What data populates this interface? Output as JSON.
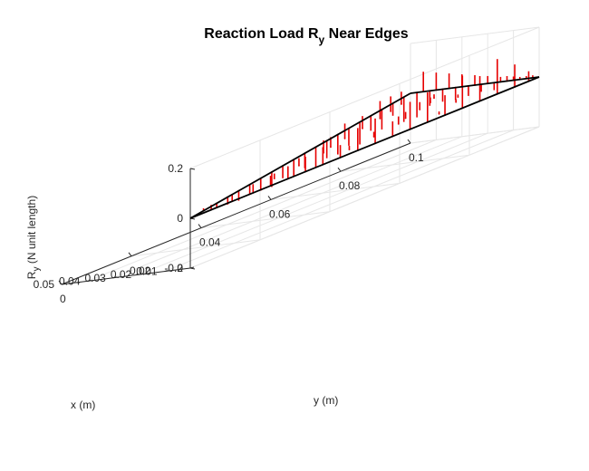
{
  "chart_data": {
    "type": "3d-stem",
    "title": "Reaction Load R",
    "title_sub": "y",
    "title_rest": " Near Edges",
    "xlabel": "x (m)",
    "ylabel": "y (m)",
    "zlabel_main": "R",
    "zlabel_sub": "y",
    "zlabel_rest": " (N unit length)",
    "xlim": [
      0,
      0.05
    ],
    "ylim": [
      0,
      0.1
    ],
    "zlim": [
      -0.2,
      0.2
    ],
    "x_ticks": [
      "0",
      "0.01",
      "0.02",
      "0.03",
      "0.04",
      "0.05"
    ],
    "y_ticks": [
      "0",
      "0.02",
      "0.04",
      "0.06",
      "0.08",
      "0.1"
    ],
    "z_ticks": [
      "-0.2",
      "0",
      "0.2"
    ],
    "grid": true,
    "triangle_vertices": [
      [
        0,
        0
      ],
      [
        0.05,
        0.1
      ],
      [
        0,
        0.1
      ]
    ],
    "stem_color": "#e60000",
    "edge_color": "#000000",
    "stems": {
      "edge_far": [
        {
          "t": 0.06,
          "z": 0.02
        },
        {
          "t": 0.12,
          "z": 0.03
        },
        {
          "t": 0.18,
          "z": 0.035
        },
        {
          "t": 0.23,
          "z": 0.04
        },
        {
          "t": 0.28,
          "z": 0.05
        },
        {
          "t": 0.33,
          "z": 0.06
        },
        {
          "t": 0.38,
          "z": 0.07
        },
        {
          "t": 0.43,
          "z": 0.05
        },
        {
          "t": 0.48,
          "z": 0.09
        },
        {
          "t": 0.53,
          "z": 0.1
        },
        {
          "t": 0.58,
          "z": 0.06
        },
        {
          "t": 0.63,
          "z": 0.11
        },
        {
          "t": 0.68,
          "z": 0.12
        },
        {
          "t": 0.73,
          "z": 0.08
        },
        {
          "t": 0.78,
          "z": 0.13
        },
        {
          "t": 0.83,
          "z": 0.1
        },
        {
          "t": 0.88,
          "z": 0.14
        },
        {
          "t": 0.93,
          "z": 0.09
        },
        {
          "t": 0.97,
          "z": 0.04
        }
      ],
      "edge_near": [
        {
          "t": 0.06,
          "z": 0.01
        },
        {
          "t": 0.12,
          "z": -0.02
        },
        {
          "t": 0.17,
          "z": -0.03
        },
        {
          "t": 0.22,
          "z": -0.04
        },
        {
          "t": 0.27,
          "z": -0.04
        },
        {
          "t": 0.32,
          "z": -0.05
        },
        {
          "t": 0.37,
          "z": -0.06
        },
        {
          "t": 0.42,
          "z": -0.05
        },
        {
          "t": 0.47,
          "z": -0.07
        },
        {
          "t": 0.52,
          "z": -0.06
        },
        {
          "t": 0.57,
          "z": -0.08
        },
        {
          "t": 0.62,
          "z": -0.07
        },
        {
          "t": 0.67,
          "z": -0.08
        },
        {
          "t": 0.72,
          "z": -0.07
        },
        {
          "t": 0.77,
          "z": -0.09
        },
        {
          "t": 0.82,
          "z": -0.06
        },
        {
          "t": 0.87,
          "z": -0.08
        },
        {
          "t": 0.92,
          "z": -0.05
        },
        {
          "t": 0.97,
          "z": -0.1
        }
      ],
      "edge_right": [
        {
          "t": 0.05,
          "z": -0.1
        },
        {
          "t": 0.1,
          "z": 0.08
        },
        {
          "t": 0.15,
          "z": -0.06
        },
        {
          "t": 0.2,
          "z": 0.07
        },
        {
          "t": 0.25,
          "z": -0.05
        },
        {
          "t": 0.3,
          "z": 0.06
        },
        {
          "t": 0.35,
          "z": -0.05
        },
        {
          "t": 0.4,
          "z": 0.05
        },
        {
          "t": 0.45,
          "z": -0.04
        },
        {
          "t": 0.5,
          "z": 0.04
        },
        {
          "t": 0.55,
          "z": -0.03
        },
        {
          "t": 0.6,
          "z": 0.03
        },
        {
          "t": 0.65,
          "z": -0.03
        },
        {
          "t": 0.7,
          "z": 0.02
        },
        {
          "t": 0.75,
          "z": 0.02
        },
        {
          "t": 0.8,
          "z": 0.015
        },
        {
          "t": 0.85,
          "z": 0.01
        },
        {
          "t": 0.9,
          "z": 0.01
        },
        {
          "t": 0.95,
          "z": 0.01
        }
      ],
      "interior": [
        {
          "x": 0.008,
          "y": 0.03,
          "z": 0.02
        },
        {
          "x": 0.012,
          "y": 0.04,
          "z": 0.03
        },
        {
          "x": 0.016,
          "y": 0.05,
          "z": 0.05
        },
        {
          "x": 0.02,
          "y": 0.055,
          "z": 0.04
        },
        {
          "x": 0.024,
          "y": 0.062,
          "z": 0.06
        },
        {
          "x": 0.028,
          "y": 0.07,
          "z": 0.05
        },
        {
          "x": 0.032,
          "y": 0.078,
          "z": 0.07
        },
        {
          "x": 0.036,
          "y": 0.084,
          "z": 0.06
        },
        {
          "x": 0.04,
          "y": 0.09,
          "z": 0.05
        },
        {
          "x": 0.006,
          "y": 0.05,
          "z": 0.015
        },
        {
          "x": 0.01,
          "y": 0.06,
          "z": 0.02
        },
        {
          "x": 0.014,
          "y": 0.07,
          "z": 0.03
        },
        {
          "x": 0.018,
          "y": 0.075,
          "z": 0.025
        },
        {
          "x": 0.022,
          "y": 0.082,
          "z": 0.03
        },
        {
          "x": 0.026,
          "y": 0.088,
          "z": 0.02
        },
        {
          "x": 0.03,
          "y": 0.092,
          "z": 0.015
        },
        {
          "x": 0.005,
          "y": 0.075,
          "z": 0.01
        },
        {
          "x": 0.012,
          "y": 0.085,
          "z": 0.012
        },
        {
          "x": 0.018,
          "y": 0.09,
          "z": 0.01
        }
      ]
    }
  }
}
